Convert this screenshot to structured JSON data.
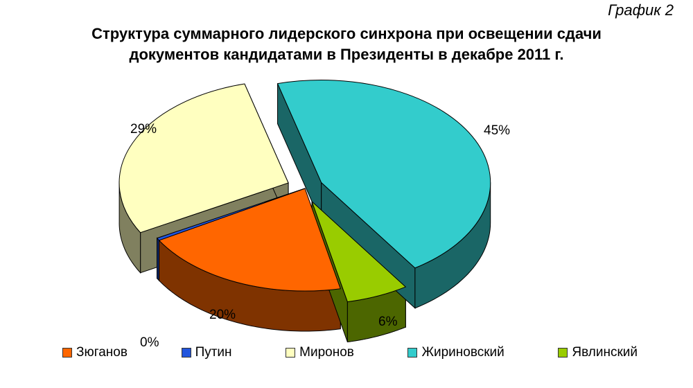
{
  "figure_label": "График 2",
  "chart_data": {
    "type": "pie",
    "title_lines": [
      "Структура суммарного лидерского синхрона при освещении сдачи",
      "документов кандидатами в Президенты в декабре 2011 г."
    ],
    "slices": [
      {
        "name": "Зюганов",
        "value": 20,
        "label": "20%",
        "color": "#ff6600",
        "side_color": "#7f3300",
        "exploded": false
      },
      {
        "name": "Путин",
        "value": 0.4,
        "label": "0%",
        "color": "#2255dd",
        "side_color": "#112a6e",
        "exploded": false
      },
      {
        "name": "Миронов",
        "value": 29,
        "label": "29%",
        "color": "#ffffc0",
        "side_color": "#80805f",
        "exploded": true
      },
      {
        "name": "Жириновский",
        "value": 45,
        "label": "45%",
        "color": "#33cccc",
        "side_color": "#1a6666",
        "exploded": true
      },
      {
        "name": "Явлинский",
        "value": 6,
        "label": "6%",
        "color": "#99cc00",
        "side_color": "#4c6600",
        "exploded": true
      }
    ],
    "legend_position": "bottom"
  }
}
